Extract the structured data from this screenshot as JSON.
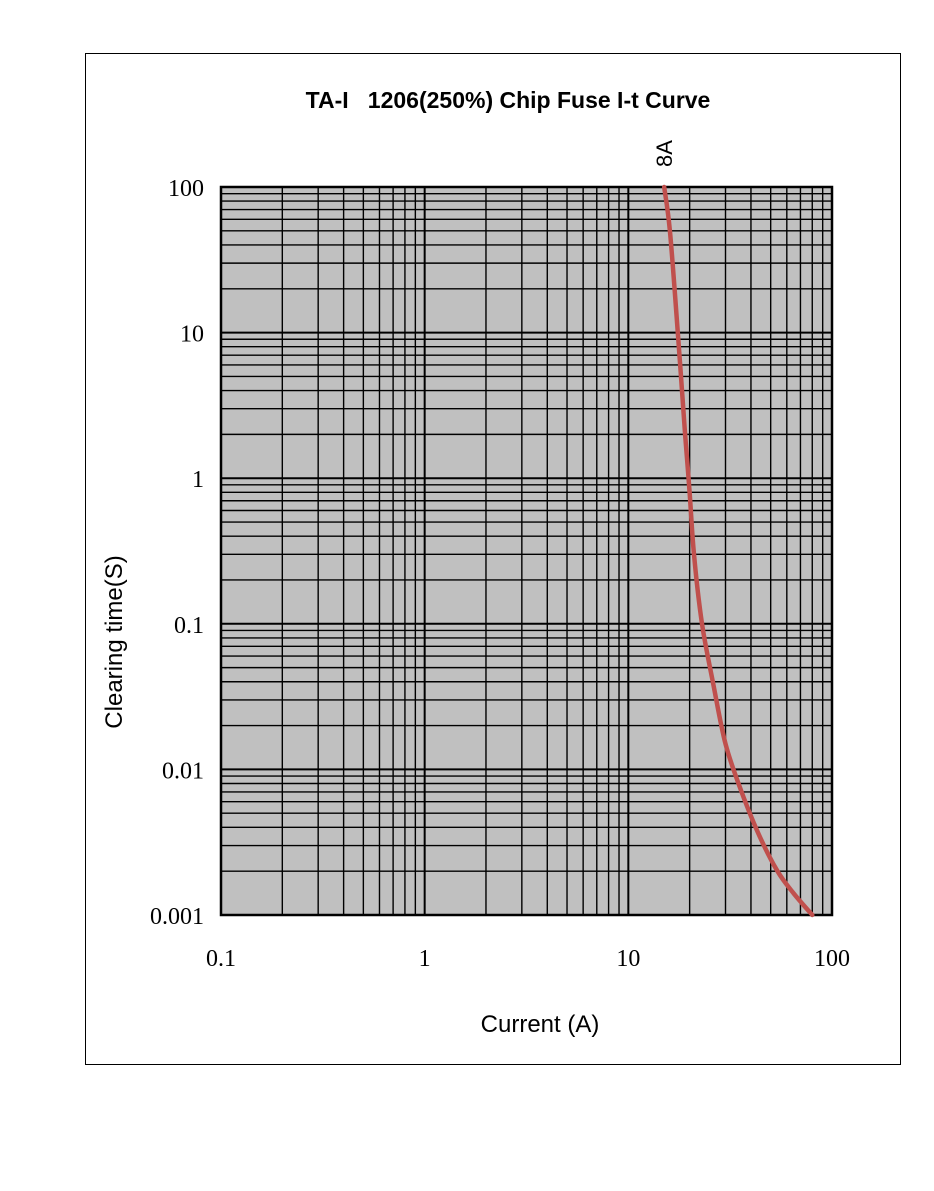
{
  "chart_data": {
    "type": "line",
    "title": "TA-I   1206(250%) Chip Fuse I-t Curve",
    "xlabel": "Current (A)",
    "ylabel": "Clearing time(S)",
    "x_scale": "log",
    "y_scale": "log",
    "xlim": [
      0.1,
      100
    ],
    "ylim": [
      0.001,
      100
    ],
    "x_ticks": [
      "0.1",
      "1",
      "10",
      "100"
    ],
    "y_ticks": [
      "100",
      "10",
      "1",
      "0.1",
      "0.01",
      "0.001"
    ],
    "grid": true,
    "colors": {
      "plot_bg": "#c0c0c0",
      "grid": "#000000",
      "series": "#c0504d"
    },
    "series": [
      {
        "name": "8A",
        "x": [
          15,
          16,
          17.5,
          19,
          20,
          21,
          23,
          26,
          30,
          36,
          44,
          54,
          65,
          80
        ],
        "y": [
          100,
          50,
          10,
          2,
          0.8,
          0.3,
          0.1,
          0.04,
          0.015,
          0.007,
          0.0035,
          0.002,
          0.0014,
          0.001
        ]
      }
    ]
  }
}
